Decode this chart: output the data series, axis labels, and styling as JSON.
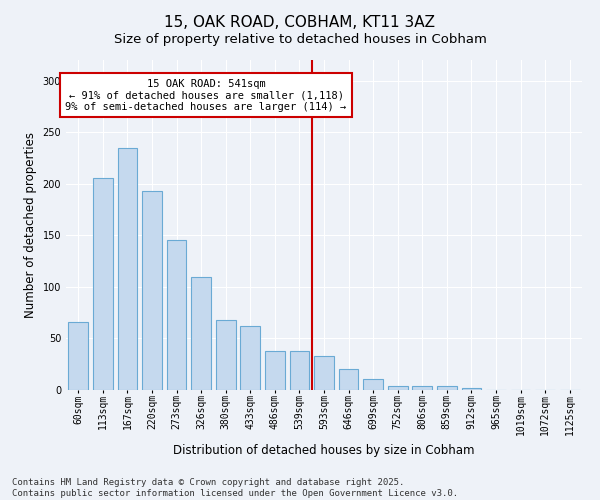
{
  "title": "15, OAK ROAD, COBHAM, KT11 3AZ",
  "subtitle": "Size of property relative to detached houses in Cobham",
  "xlabel": "Distribution of detached houses by size in Cobham",
  "ylabel": "Number of detached properties",
  "categories": [
    "60sqm",
    "113sqm",
    "167sqm",
    "220sqm",
    "273sqm",
    "326sqm",
    "380sqm",
    "433sqm",
    "486sqm",
    "539sqm",
    "593sqm",
    "646sqm",
    "699sqm",
    "752sqm",
    "806sqm",
    "859sqm",
    "912sqm",
    "965sqm",
    "1019sqm",
    "1072sqm",
    "1125sqm"
  ],
  "values": [
    66,
    206,
    235,
    193,
    145,
    110,
    68,
    62,
    38,
    38,
    33,
    20,
    11,
    4,
    4,
    4,
    2,
    0,
    0,
    0,
    0
  ],
  "bar_color": "#c5d9ee",
  "bar_edge_color": "#6aaad4",
  "vline_pos": 9.5,
  "annotation_line1": "15 OAK ROAD: 541sqm",
  "annotation_line2": "← 91% of detached houses are smaller (1,118)",
  "annotation_line3": "9% of semi-detached houses are larger (114) →",
  "annotation_box_color": "#ffffff",
  "annotation_box_edge_color": "#cc0000",
  "vline_color": "#cc0000",
  "background_color": "#eef2f8",
  "grid_color": "#ffffff",
  "footer": "Contains HM Land Registry data © Crown copyright and database right 2025.\nContains public sector information licensed under the Open Government Licence v3.0.",
  "ylim": [
    0,
    320
  ],
  "yticks": [
    0,
    50,
    100,
    150,
    200,
    250,
    300
  ],
  "title_fontsize": 11,
  "subtitle_fontsize": 9.5,
  "xlabel_fontsize": 8.5,
  "ylabel_fontsize": 8.5,
  "tick_fontsize": 7,
  "annotation_fontsize": 7.5,
  "footer_fontsize": 6.5,
  "bar_width": 0.8
}
